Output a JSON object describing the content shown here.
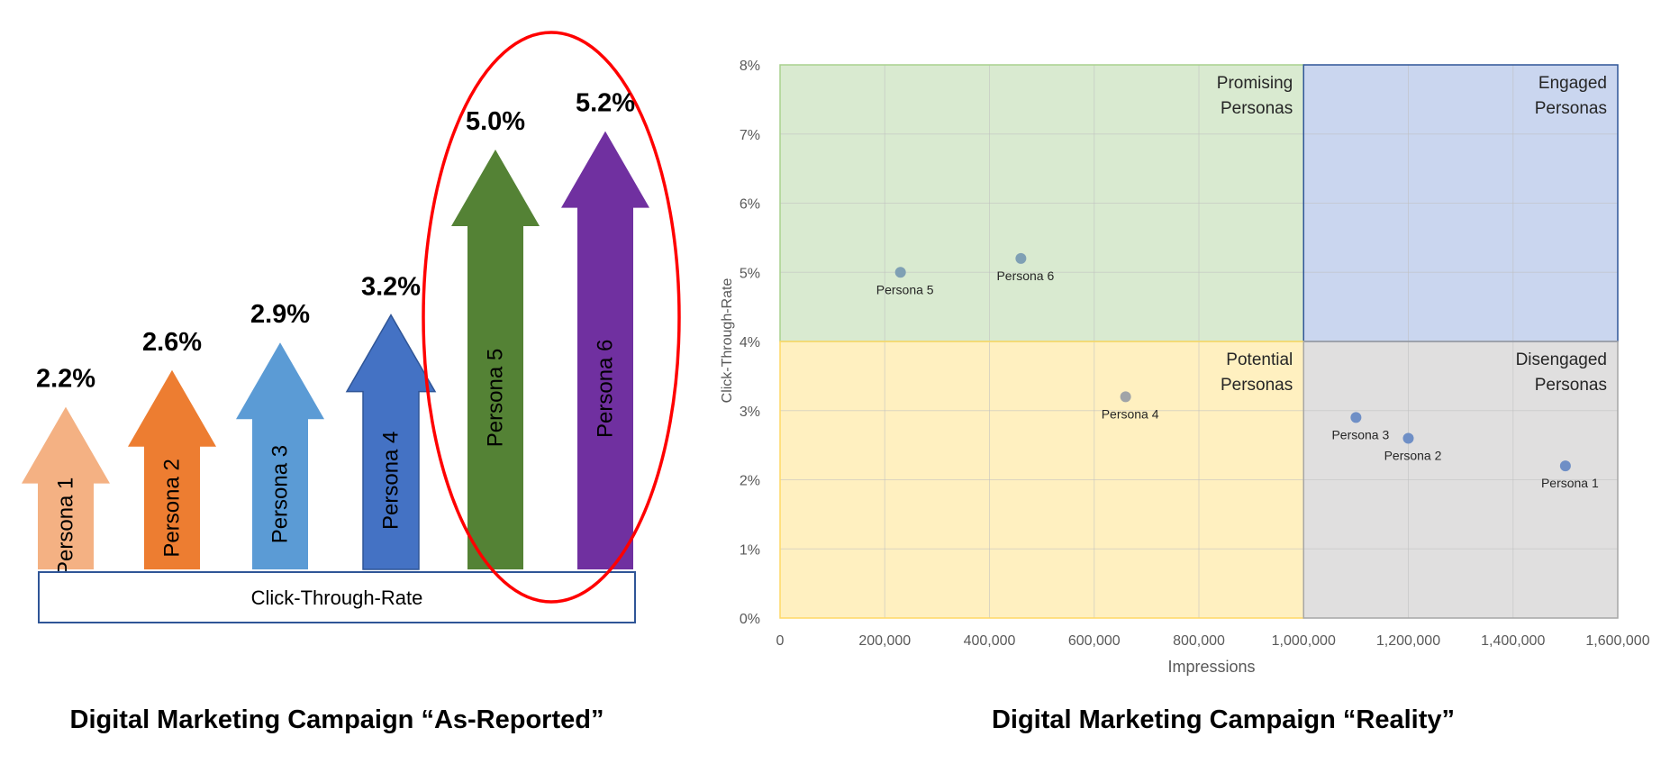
{
  "chart_data": [
    {
      "type": "bar",
      "title": "Digital Marketing Campaign “As-Reported”",
      "base_label": "Click-Through-Rate",
      "categories": [
        "Persona 1",
        "Persona 2",
        "Persona 3",
        "Persona 4",
        "Persona 5",
        "Persona 6"
      ],
      "values": [
        2.2,
        2.6,
        2.9,
        3.2,
        5.0,
        5.2
      ],
      "value_labels": [
        "2.2%",
        "2.6%",
        "2.9%",
        "3.2%",
        "5.0%",
        "5.2%"
      ],
      "colors": [
        "#F4B183",
        "#ED7D31",
        "#5B9BD5",
        "#4472C4",
        "#548235",
        "#7030A0"
      ],
      "highlight_color": "#FF0000",
      "highlighted_categories": [
        "Persona 5",
        "Persona 6"
      ]
    },
    {
      "type": "scatter",
      "title": "Digital Marketing Campaign “Reality”",
      "xlabel": "Impressions",
      "ylabel": "Click-Through-Rate",
      "xlim": [
        0,
        1600000
      ],
      "ylim": [
        0,
        8
      ],
      "x_ticks": [
        "0",
        "200,000",
        "400,000",
        "600,000",
        "800,000",
        "1,000,000",
        "1,200,000",
        "1,400,000",
        "1,600,000"
      ],
      "y_ticks": [
        "0%",
        "1%",
        "2%",
        "3%",
        "4%",
        "5%",
        "6%",
        "7%",
        "8%"
      ],
      "grid": true,
      "points": [
        {
          "label": "Persona 5",
          "x": 230000,
          "y": 5.0,
          "color": "#7FA0B4"
        },
        {
          "label": "Persona 6",
          "x": 460000,
          "y": 5.2,
          "color": "#7FA0B4"
        },
        {
          "label": "Persona 4",
          "x": 660000,
          "y": 3.2,
          "color": "#A0A4A8"
        },
        {
          "label": "Persona 3",
          "x": 1100000,
          "y": 2.9,
          "color": "#6F8FC6"
        },
        {
          "label": "Persona 2",
          "x": 1200000,
          "y": 2.6,
          "color": "#6F8FC6"
        },
        {
          "label": "Persona 1",
          "x": 1500000,
          "y": 2.2,
          "color": "#6F8FC6"
        }
      ],
      "quadrants": [
        {
          "label_lines": [
            "Promising",
            "Personas"
          ],
          "x_range": [
            0,
            1000000
          ],
          "y_range": [
            4,
            8
          ],
          "color": "#D9EAD0",
          "border": "#A9D18E"
        },
        {
          "label_lines": [
            "Engaged",
            "Personas"
          ],
          "x_range": [
            1000000,
            1600000
          ],
          "y_range": [
            4,
            8
          ],
          "color": "#CAD6EF",
          "border": "#2F5597"
        },
        {
          "label_lines": [
            "Potential",
            "Personas"
          ],
          "x_range": [
            0,
            1000000
          ],
          "y_range": [
            0,
            4
          ],
          "color": "#FFF0C0",
          "border": "#FFD966"
        },
        {
          "label_lines": [
            "Disengaged",
            "Personas"
          ],
          "x_range": [
            1000000,
            1600000
          ],
          "y_range": [
            0,
            4
          ],
          "color": "#E0DFDF",
          "border": "#A6A6A6"
        }
      ]
    }
  ]
}
